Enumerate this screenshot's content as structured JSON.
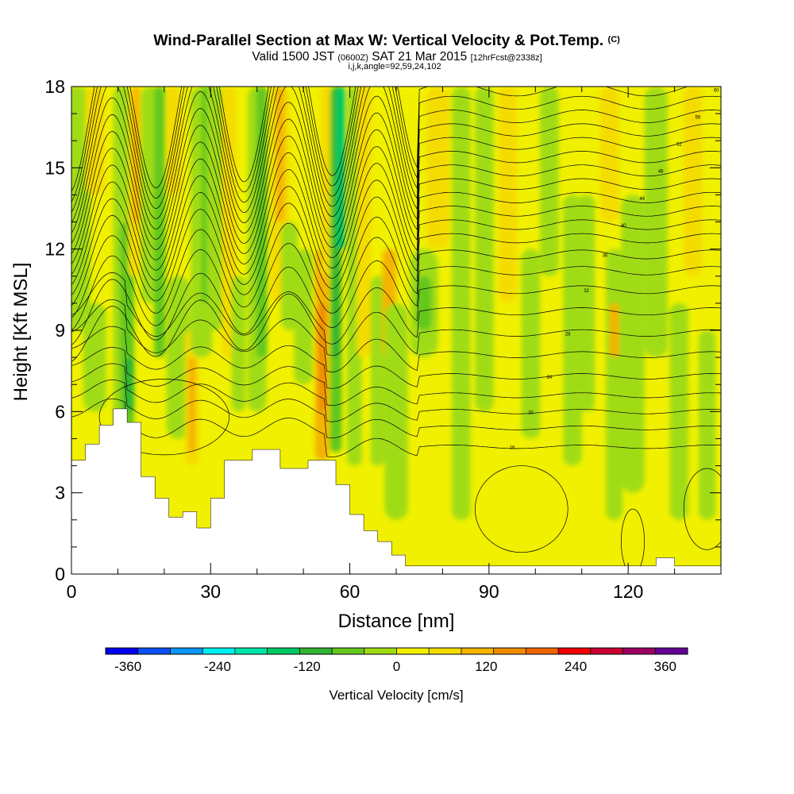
{
  "chart_data": {
    "type": "heatmap",
    "title": "Wind-Parallel Section at Max W: Vertical Velocity & Pot.Temp.",
    "title_mark": "(C)",
    "subtitle_parts": [
      "Valid 1500 JST",
      "(0600Z)",
      "SAT 21 Mar 2015",
      "[12hrFcst@2338z]"
    ],
    "subtitle2": "i,j,k,angle=92,59,24,102",
    "xlabel": "Distance [nm]",
    "ylabel": "Height [Kft MSL]",
    "xlim": [
      0,
      140
    ],
    "ylim": [
      0,
      18
    ],
    "x_ticks": [
      0,
      30,
      60,
      90,
      120
    ],
    "y_ticks": [
      0,
      3,
      6,
      9,
      12,
      15,
      18
    ],
    "colorbar": {
      "label": "Vertical Velocity [cm/s]",
      "ticks": [
        -360,
        -240,
        -120,
        0,
        120,
        240,
        360
      ],
      "range": [
        -390,
        390
      ],
      "colors": [
        "#0000f0",
        "#0a50f5",
        "#0a96f5",
        "#00f0f0",
        "#00e6aa",
        "#00c864",
        "#32b432",
        "#64c81e",
        "#a0dc14",
        "#f0f000",
        "#f5dc00",
        "#f5b400",
        "#f08c00",
        "#f06400",
        "#f00000",
        "#c80032",
        "#9b0064",
        "#640096"
      ]
    },
    "terrain_heights_kft": {
      "x": [
        0,
        3,
        6,
        9,
        12,
        15,
        18,
        21,
        24,
        27,
        30,
        33,
        36,
        39,
        42,
        45,
        48,
        51,
        54,
        57,
        60,
        63,
        66,
        69,
        72,
        80,
        90,
        100,
        110,
        120,
        124,
        126,
        128,
        130,
        134,
        140
      ],
      "h": [
        4.2,
        4.8,
        5.5,
        6.1,
        5.6,
        3.6,
        2.8,
        2.1,
        2.3,
        1.7,
        2.8,
        4.2,
        4.2,
        4.6,
        4.6,
        3.9,
        3.9,
        4.2,
        4.2,
        3.3,
        2.2,
        1.6,
        1.2,
        0.7,
        0.3,
        0.3,
        0.3,
        0.3,
        0.3,
        0.3,
        0.3,
        0.6,
        0.6,
        0.3,
        0.3,
        0.3
      ]
    },
    "theta_contour_values_K": [
      10,
      12,
      14,
      16,
      18,
      20,
      22,
      24,
      26,
      28,
      30,
      32,
      34,
      36,
      38,
      40,
      42,
      44,
      46,
      48,
      50,
      52,
      54,
      56,
      58,
      60
    ],
    "grid": false
  }
}
